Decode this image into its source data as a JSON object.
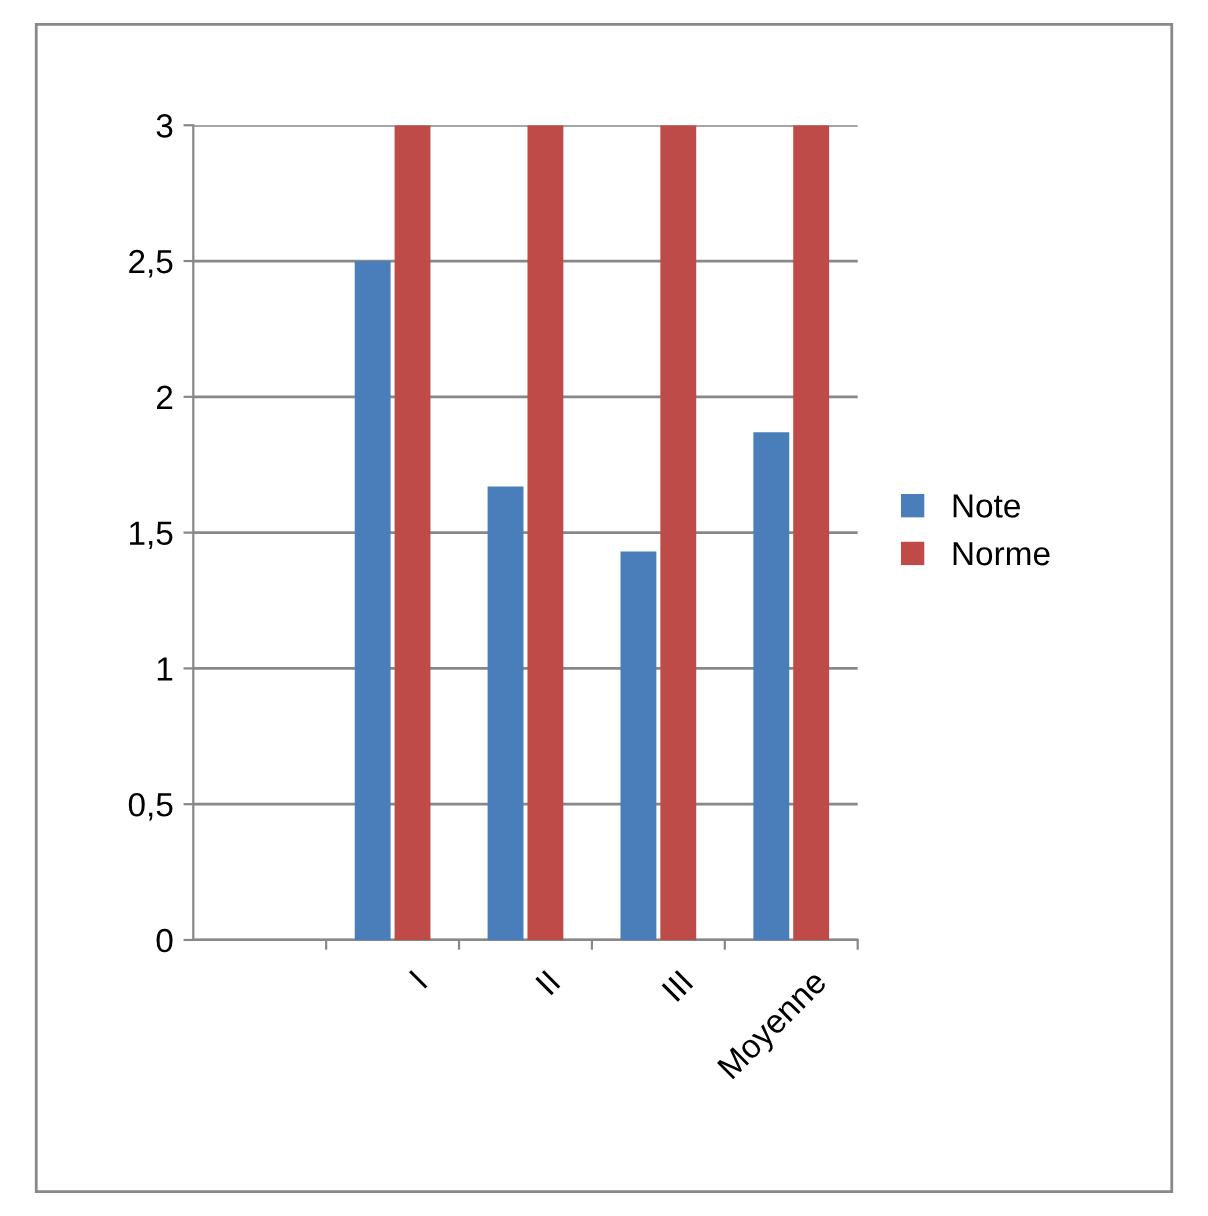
{
  "chart_data": {
    "type": "bar",
    "categories": [
      null,
      "I",
      "II",
      "III",
      "Moyenne"
    ],
    "series": [
      {
        "name": "Note",
        "color": "#4a7ebb",
        "values": [
          null,
          2.5,
          1.67,
          1.43,
          1.87
        ]
      },
      {
        "name": "Norme",
        "color": "#be4b48",
        "values": [
          null,
          3,
          3,
          3,
          3
        ]
      }
    ],
    "ylim": [
      0,
      3
    ],
    "yticks": [
      0,
      {
        "value": 0.5,
        "label": "0,5"
      },
      1,
      {
        "value": 1.5,
        "label": "1,5"
      },
      2,
      {
        "value": 2.5,
        "label": "2,5"
      },
      3
    ],
    "grid": "y",
    "legend": "right"
  }
}
